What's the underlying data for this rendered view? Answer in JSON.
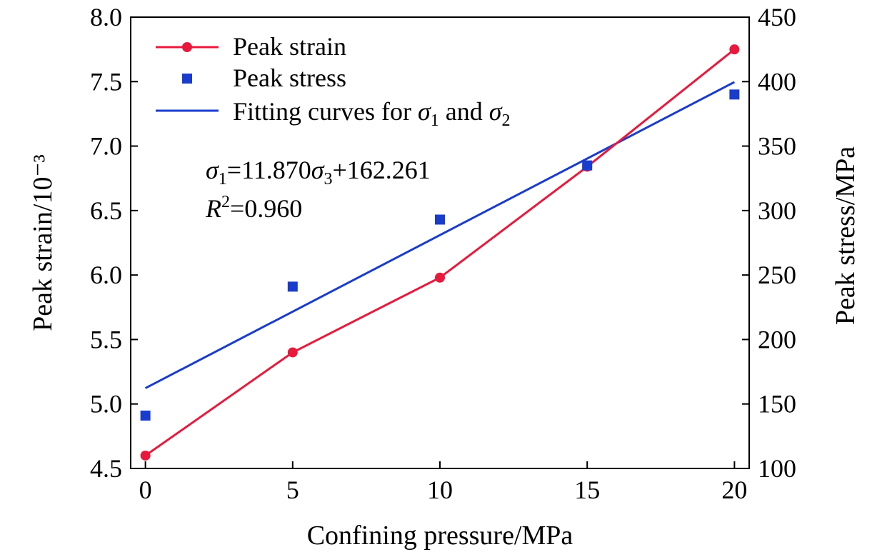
{
  "chart_data": {
    "type": "line",
    "x": [
      0,
      5,
      10,
      15,
      20
    ],
    "xlabel": "Confining pressure/MPa",
    "xlim": [
      -0.5,
      20.5
    ],
    "xticks": [
      "0",
      "5",
      "10",
      "15",
      "20"
    ],
    "ylabel_left": "Peak strain/10⁻³",
    "ylim_left": [
      4.5,
      8.0
    ],
    "yticks_left": [
      "4.5",
      "5.0",
      "5.5",
      "6.0",
      "6.5",
      "7.0",
      "7.5",
      "8.0"
    ],
    "ylabel_right": "Peak stress/MPa",
    "ylim_right": [
      100,
      450
    ],
    "yticks_right": [
      "100",
      "150",
      "200",
      "250",
      "300",
      "350",
      "400",
      "450"
    ],
    "series": [
      {
        "name": "Peak strain",
        "axis": "left",
        "style": "line+circle",
        "color": "#e8193c",
        "values": [
          4.6,
          5.4,
          5.98,
          6.84,
          7.75
        ]
      },
      {
        "name": "Peak stress",
        "axis": "right",
        "style": "square",
        "color": "#1a3ccc",
        "values": [
          141,
          241,
          293,
          335,
          390
        ]
      },
      {
        "name": "Fitting curves for σ1 and σ2",
        "axis": "right",
        "style": "line",
        "color": "#1a3ccc",
        "x": [
          0,
          20
        ],
        "values": [
          162.261,
          399.661
        ]
      }
    ],
    "legend": {
      "position": "top-left",
      "items": [
        {
          "label": "Peak strain"
        },
        {
          "label": "Peak stress"
        },
        {
          "label_main": "Fitting curves for ",
          "sym1": "σ",
          "sub1": "1",
          "and": " and ",
          "sym2": "σ",
          "sub2": "2"
        }
      ]
    },
    "annotation": {
      "sigma": "σ",
      "sub1": "1",
      "eq_mid": "=11.870",
      "sub3": "3",
      "eq_end": "+162.261",
      "r": "R",
      "r_sup": "2",
      "r_val": "=0.960"
    }
  }
}
